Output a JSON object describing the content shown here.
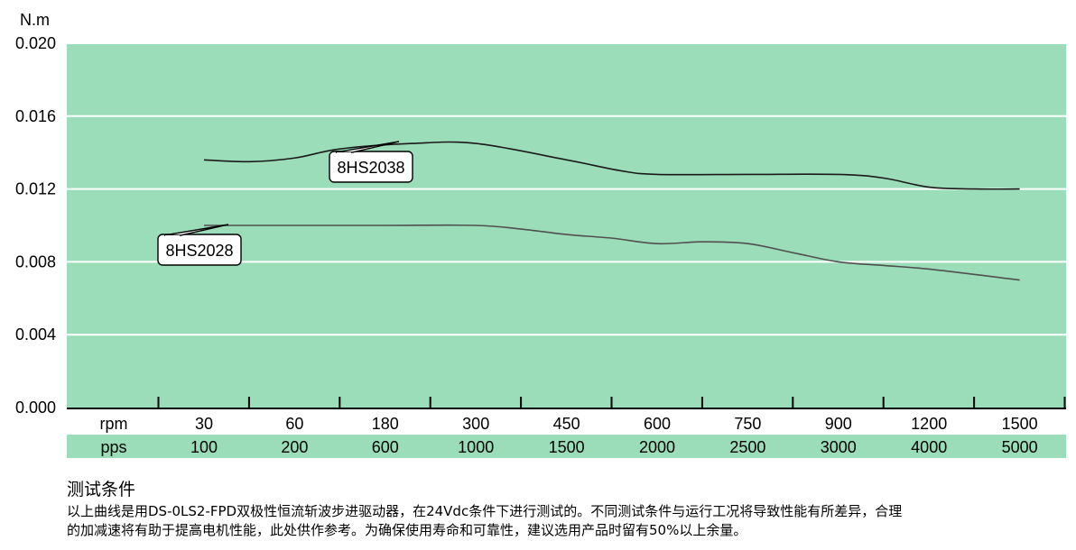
{
  "chart_data": {
    "type": "line",
    "y_unit": "N.m",
    "ylim": [
      0,
      0.02
    ],
    "y_ticks": [
      "0.000",
      "0.004",
      "0.008",
      "0.012",
      "0.016",
      "0.020"
    ],
    "x_rows": [
      {
        "label": "rpm",
        "values": [
          "30",
          "60",
          "180",
          "300",
          "450",
          "600",
          "750",
          "900",
          "1200",
          "1500"
        ]
      },
      {
        "label": "pps",
        "values": [
          "100",
          "200",
          "600",
          "1000",
          "1500",
          "2000",
          "2500",
          "3000",
          "4000",
          "5000"
        ]
      }
    ],
    "grid": true,
    "series": [
      {
        "name": "8HS2038",
        "color": "#1a1a1a",
        "points": [
          [
            0,
            0.0136
          ],
          [
            0.5,
            0.0135
          ],
          [
            1,
            0.0137
          ],
          [
            1.5,
            0.0142
          ],
          [
            2.3,
            0.0145
          ],
          [
            3,
            0.0145
          ],
          [
            4,
            0.0136
          ],
          [
            4.6,
            0.013
          ],
          [
            5,
            0.0128
          ],
          [
            6,
            0.0128
          ],
          [
            7,
            0.0128
          ],
          [
            7.5,
            0.0126
          ],
          [
            8,
            0.0121
          ],
          [
            8.5,
            0.012
          ],
          [
            9,
            0.012
          ]
        ]
      },
      {
        "name": "8HS2028",
        "color": "#505050",
        "points": [
          [
            0,
            0.01
          ],
          [
            1,
            0.01
          ],
          [
            2,
            0.01
          ],
          [
            3,
            0.01
          ],
          [
            3.5,
            0.0098
          ],
          [
            4,
            0.0095
          ],
          [
            4.5,
            0.0093
          ],
          [
            5,
            0.009
          ],
          [
            5.5,
            0.0091
          ],
          [
            6,
            0.009
          ],
          [
            6.5,
            0.0085
          ],
          [
            7,
            0.008
          ],
          [
            7.5,
            0.0078
          ],
          [
            8,
            0.0076
          ],
          [
            9,
            0.007
          ]
        ]
      }
    ],
    "annotations": [
      {
        "text": "8HS2038",
        "series": "8HS2038"
      },
      {
        "text": "8HS2028",
        "series": "8HS2028"
      }
    ],
    "colors": {
      "plot_bg": "#9addb8",
      "pps_band": "#9addb8",
      "grid": "#ffffff"
    }
  },
  "test_conditions": {
    "title": "测试条件",
    "line1": "以上曲线是用DS-0LS2-FPD双极性恒流斩波步进驱动器，在24Vdc条件下进行测试的。不同测试条件与运行工况将导致性能有所差异，合理",
    "line2": "的加减速将有助于提高电机性能，此处供作参考。为确保使用寿命和可靠性，建议选用产品时留有50%以上余量。"
  }
}
